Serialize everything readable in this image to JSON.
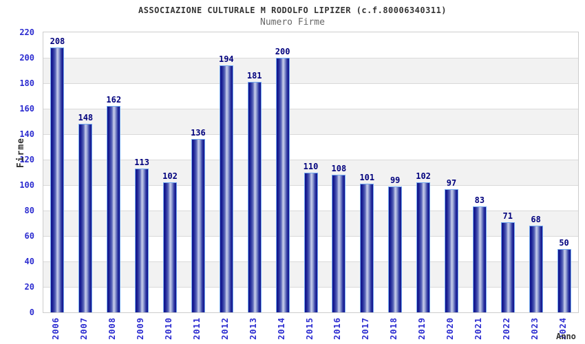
{
  "chart_data": {
    "type": "bar",
    "title": "ASSOCIAZIONE CULTURALE M RODOLFO LIPIZER (c.f.80006340311)",
    "subtitle": "Numero Firme",
    "xlabel": "Anno",
    "ylabel": "Firme",
    "categories": [
      "2006",
      "2007",
      "2008",
      "2009",
      "2010",
      "2011",
      "2012",
      "2013",
      "2014",
      "2015",
      "2016",
      "2017",
      "2018",
      "2019",
      "2020",
      "2021",
      "2022",
      "2023",
      "2024"
    ],
    "values": [
      208,
      148,
      162,
      113,
      102,
      136,
      194,
      181,
      200,
      110,
      108,
      101,
      99,
      102,
      97,
      83,
      71,
      68,
      50
    ],
    "ylim": [
      0,
      220
    ],
    "ytick_step": 20,
    "grid": "horizontal-bands",
    "legend": "none",
    "colors": {
      "title": "#333333",
      "subtitle": "#666666",
      "tick_label": "#2b2bd0",
      "value_label": "#00007d",
      "axis_label": "#333333",
      "bar_dark": "#10108a",
      "bar_mid": "#5a66b8",
      "bar_highlight": "#c9cfec",
      "bar_outline": "#74aaf0",
      "band": "#f2f2f2",
      "gridline": "#d9d9d9",
      "plot_border": "#cccccc",
      "background": "#ffffff"
    }
  }
}
